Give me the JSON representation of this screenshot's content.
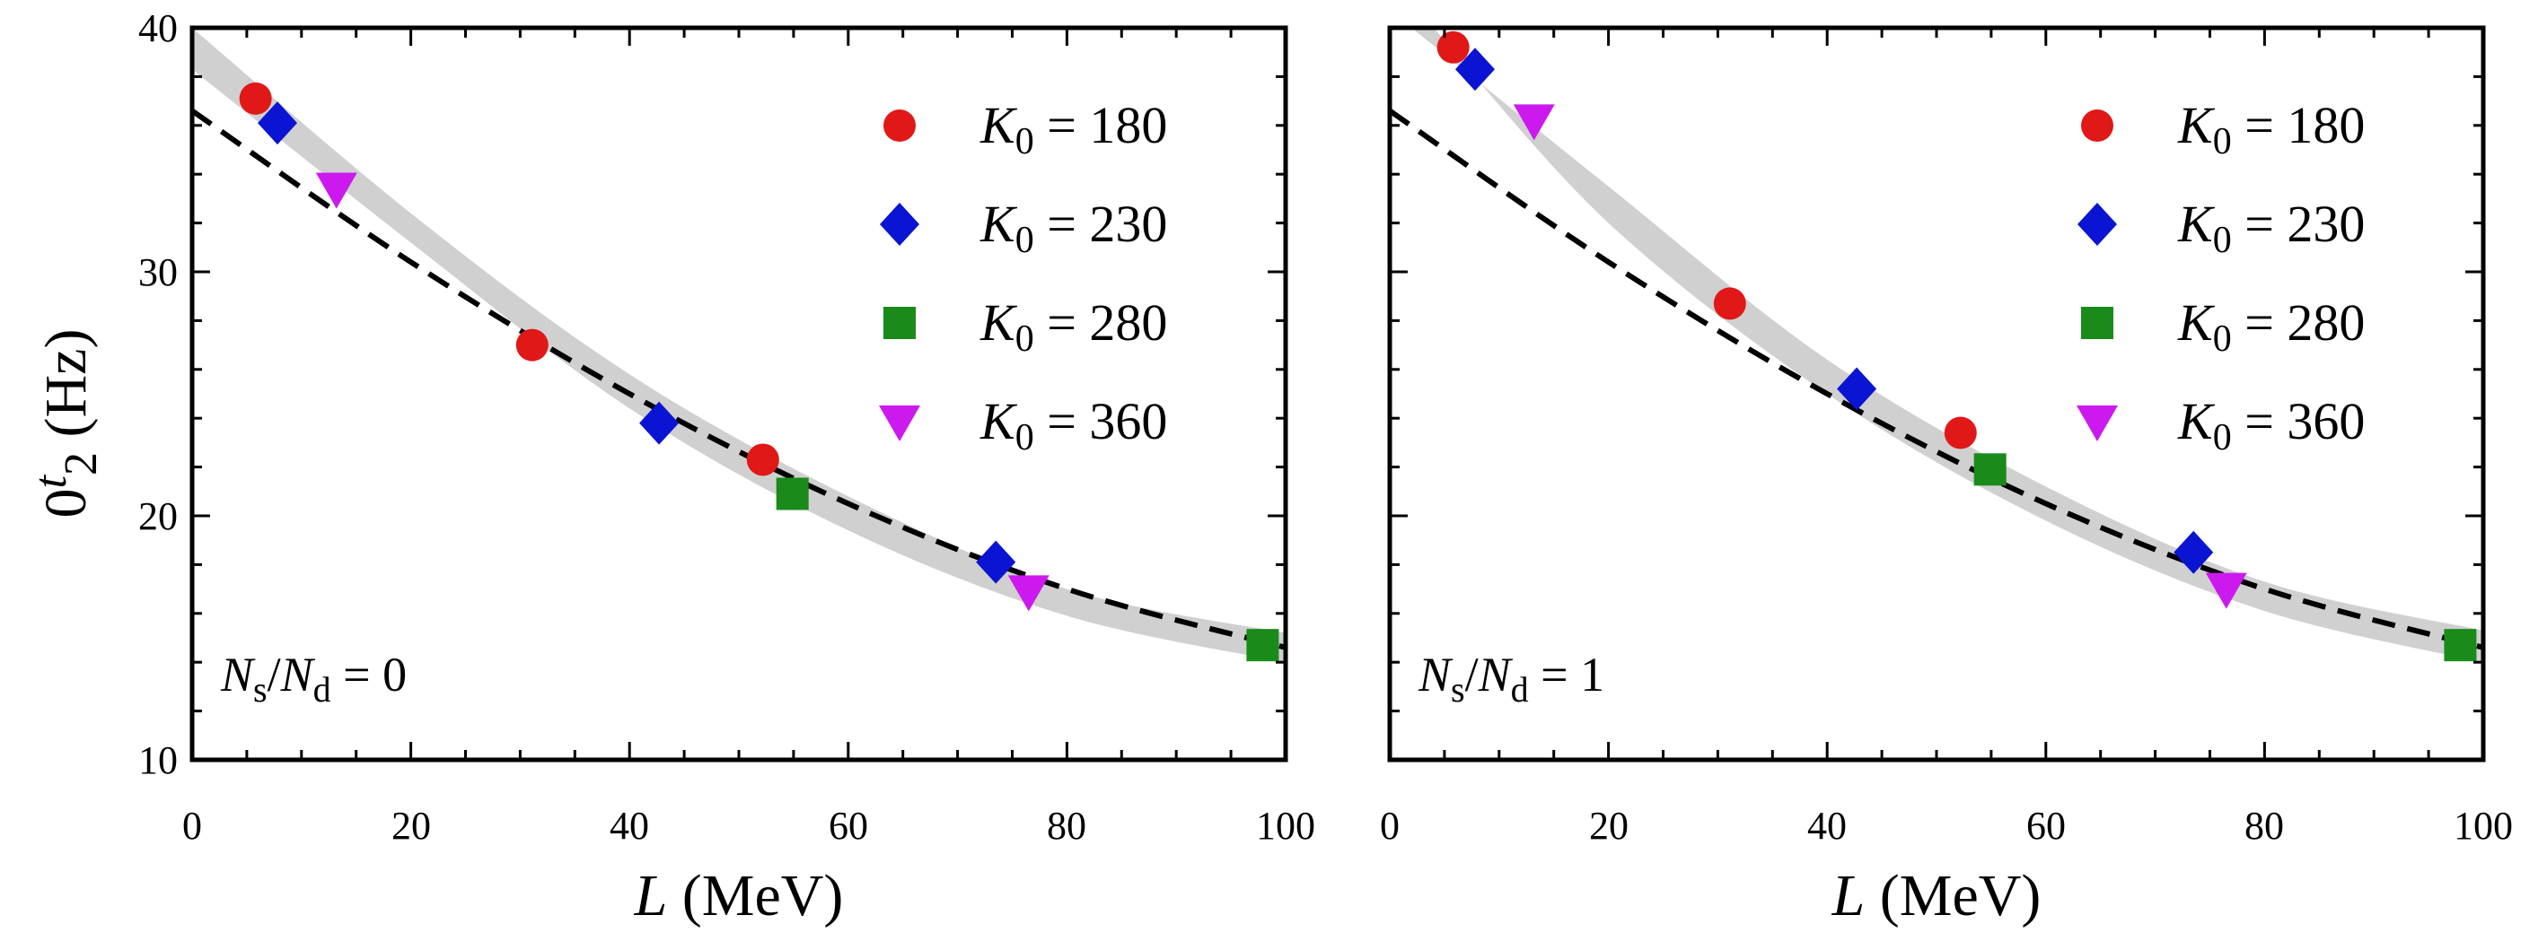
{
  "colors": {
    "band": "#d0d0d0",
    "dashed_fit": "#000000",
    "K180": "#e01818",
    "K230": "#0a14d2",
    "K280": "#1a8a1a",
    "K360": "#cc1aee"
  },
  "chart_data": [
    {
      "type": "scatter",
      "panel": "left",
      "xlabel_italic": "L",
      "xlabel_rest": " (MeV)",
      "ylabel_main": "0",
      "ylabel_sub_base": "t",
      "ylabel_sub": "2",
      "ylabel_rest": " (Hz)",
      "xlim": [
        0,
        100
      ],
      "ylim": [
        10,
        40
      ],
      "xticks": [
        "0",
        "20",
        "40",
        "60",
        "80",
        "100"
      ],
      "yticks": [
        "10",
        "20",
        "30",
        "40"
      ],
      "annotation": {
        "N": "N",
        "s": "s",
        "slash": "/",
        "N2": "N",
        "d": "d",
        "eq": " = 0"
      },
      "band_upper": [
        [
          0,
          40.0
        ],
        [
          20,
          32.4
        ],
        [
          40,
          25.8
        ],
        [
          60,
          20.8
        ],
        [
          80,
          17.0
        ],
        [
          100,
          15.2
        ]
      ],
      "band_lower": [
        [
          0,
          38.3
        ],
        [
          20,
          31.2
        ],
        [
          40,
          24.4
        ],
        [
          60,
          19.4
        ],
        [
          80,
          15.9
        ],
        [
          100,
          14.0
        ]
      ],
      "dashed_fit": [
        [
          0,
          36.6
        ],
        [
          20,
          30.4
        ],
        [
          40,
          25.0
        ],
        [
          60,
          20.5
        ],
        [
          80,
          17.0
        ],
        [
          100,
          14.6
        ]
      ],
      "series": [
        {
          "name": "K0 = 180",
          "k0": "180",
          "marker": "circle",
          "points": [
            [
              5.8,
              37.1
            ],
            [
              31.1,
              27.0
            ],
            [
              52.2,
              22.3
            ]
          ]
        },
        {
          "name": "K0 = 230",
          "k0": "230",
          "marker": "diamond",
          "points": [
            [
              7.8,
              36.1
            ],
            [
              42.7,
              23.8
            ],
            [
              73.5,
              18.1
            ]
          ]
        },
        {
          "name": "K0 = 280",
          "k0": "280",
          "marker": "square",
          "points": [
            [
              54.9,
              20.9
            ],
            [
              97.9,
              14.7
            ]
          ]
        },
        {
          "name": "K0 = 360",
          "k0": "360",
          "marker": "triangle-down",
          "points": [
            [
              13.2,
              33.4
            ],
            [
              76.5,
              16.9
            ]
          ]
        }
      ]
    },
    {
      "type": "scatter",
      "panel": "right",
      "xlabel_italic": "L",
      "xlabel_rest": " (MeV)",
      "xlim": [
        0,
        100
      ],
      "ylim": [
        10,
        40
      ],
      "xticks": [
        "0",
        "20",
        "40",
        "60",
        "80",
        "100"
      ],
      "annotation": {
        "N": "N",
        "s": "s",
        "slash": "/",
        "N2": "N",
        "d": "d",
        "eq": " = 1"
      },
      "band_upper": [
        [
          2,
          40.0
        ],
        [
          20,
          33.5
        ],
        [
          40,
          26.4
        ],
        [
          60,
          21.2
        ],
        [
          80,
          17.3
        ],
        [
          100,
          15.3
        ]
      ],
      "band_lower": [
        [
          4,
          40.0
        ],
        [
          20,
          32.0
        ],
        [
          40,
          25.0
        ],
        [
          60,
          19.8
        ],
        [
          80,
          16.1
        ],
        [
          100,
          14.0
        ]
      ],
      "dashed_fit": [
        [
          0,
          36.6
        ],
        [
          20,
          30.4
        ],
        [
          40,
          25.0
        ],
        [
          60,
          20.5
        ],
        [
          80,
          17.0
        ],
        [
          100,
          14.6
        ]
      ],
      "series": [
        {
          "name": "K0 = 180",
          "k0": "180",
          "marker": "circle",
          "points": [
            [
              5.8,
              39.2
            ],
            [
              31.1,
              28.7
            ],
            [
              52.2,
              23.4
            ]
          ]
        },
        {
          "name": "K0 = 230",
          "k0": "230",
          "marker": "diamond",
          "points": [
            [
              7.8,
              38.3
            ],
            [
              42.7,
              25.2
            ],
            [
              73.5,
              18.5
            ]
          ]
        },
        {
          "name": "K0 = 280",
          "k0": "280",
          "marker": "square",
          "points": [
            [
              54.9,
              21.9
            ],
            [
              97.9,
              14.7
            ]
          ]
        },
        {
          "name": "K0 = 360",
          "k0": "360",
          "marker": "triangle-down",
          "points": [
            [
              13.2,
              36.2
            ],
            [
              76.5,
              17.0
            ]
          ]
        }
      ]
    }
  ]
}
